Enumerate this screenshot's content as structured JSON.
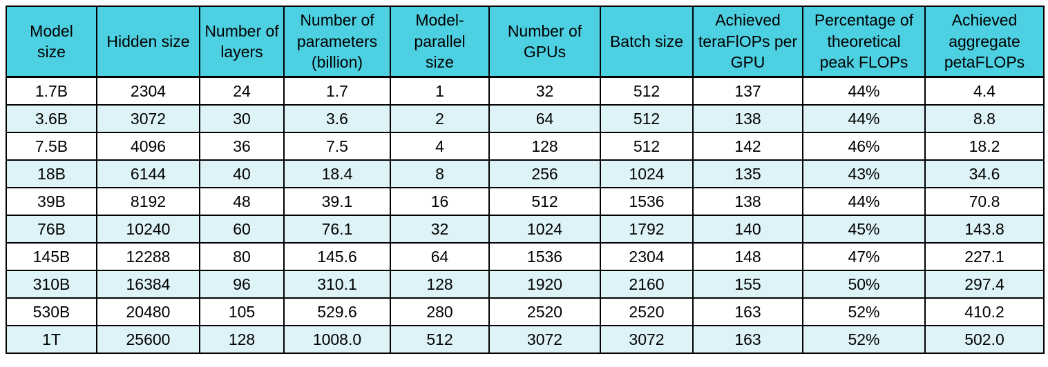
{
  "chart_data": {
    "type": "table",
    "columns": [
      "Model\nsize",
      "Hidden size",
      "Number of\nlayers",
      "Number of\nparameters\n(billion)",
      "Model-parallel\nsize",
      "Number of\nGPUs",
      "Batch size",
      "Achieved\nteraFlOPs per\nGPU",
      "Percentage of\ntheoretical\npeak FLOPs",
      "Achieved\naggregate\npetaFLOPs"
    ],
    "rows": [
      [
        "1.7B",
        "2304",
        "24",
        "1.7",
        "1",
        "32",
        "512",
        "137",
        "44%",
        "4.4"
      ],
      [
        "3.6B",
        "3072",
        "30",
        "3.6",
        "2",
        "64",
        "512",
        "138",
        "44%",
        "8.8"
      ],
      [
        "7.5B",
        "4096",
        "36",
        "7.5",
        "4",
        "128",
        "512",
        "142",
        "46%",
        "18.2"
      ],
      [
        "18B",
        "6144",
        "40",
        "18.4",
        "8",
        "256",
        "1024",
        "135",
        "43%",
        "34.6"
      ],
      [
        "39B",
        "8192",
        "48",
        "39.1",
        "16",
        "512",
        "1536",
        "138",
        "44%",
        "70.8"
      ],
      [
        "76B",
        "10240",
        "60",
        "76.1",
        "32",
        "1024",
        "1792",
        "140",
        "45%",
        "143.8"
      ],
      [
        "145B",
        "12288",
        "80",
        "145.6",
        "64",
        "1536",
        "2304",
        "148",
        "47%",
        "227.1"
      ],
      [
        "310B",
        "16384",
        "96",
        "310.1",
        "128",
        "1920",
        "2160",
        "155",
        "50%",
        "297.4"
      ],
      [
        "530B",
        "20480",
        "105",
        "529.6",
        "280",
        "2520",
        "2520",
        "163",
        "52%",
        "410.2"
      ],
      [
        "1T",
        "25600",
        "128",
        "1008.0",
        "512",
        "3072",
        "3072",
        "163",
        "52%",
        "502.0"
      ]
    ]
  },
  "colors": {
    "header_bg": "#4dd0e1",
    "row_bg": "#ffffff",
    "row_alt_bg": "#def3f7",
    "border": "#000000",
    "text": "#000000"
  }
}
